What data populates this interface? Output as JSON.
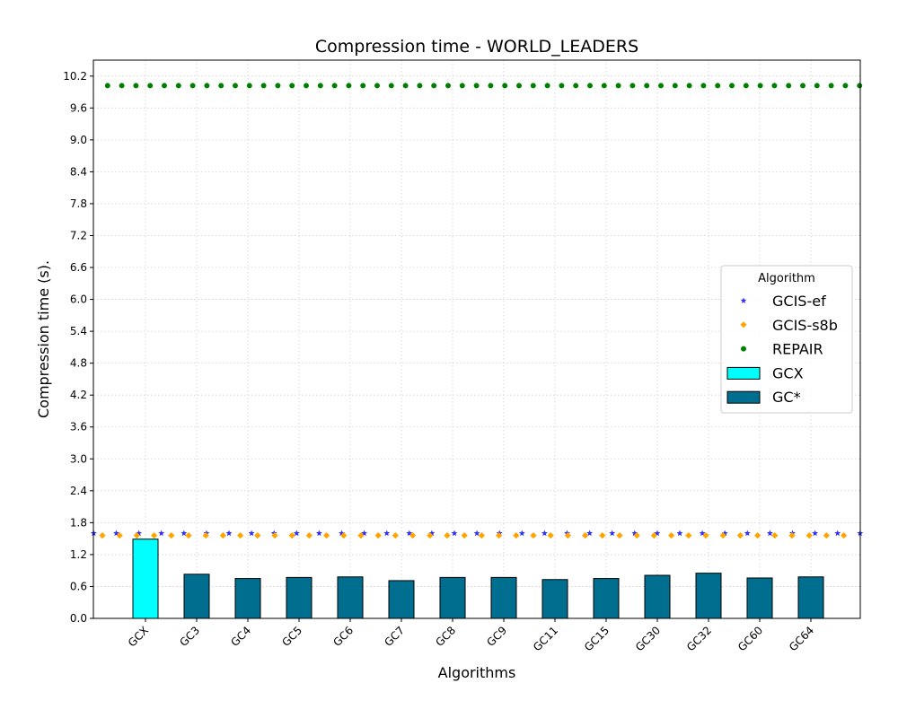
{
  "chart_data": {
    "type": "bar",
    "title": "Compression time -  WORLD_LEADERS",
    "xlabel": "Algorithms",
    "ylabel": "Compression time (s).",
    "categories": [
      "GCX",
      "GC3",
      "GC4",
      "GC5",
      "GC6",
      "GC7",
      "GC8",
      "GC9",
      "GC11",
      "GC15",
      "GC30",
      "GC32",
      "GC60",
      "GC64"
    ],
    "ylim": [
      0,
      10.5
    ],
    "yticks": [
      "0.0",
      "0.6",
      "1.2",
      "1.8",
      "2.4",
      "3.0",
      "3.6",
      "4.2",
      "4.8",
      "5.4",
      "6.0",
      "6.6",
      "7.2",
      "7.8",
      "8.4",
      "9.0",
      "9.6",
      "10.2"
    ],
    "grid": true,
    "legend": {
      "title": "Algorithm",
      "placement": "center-right",
      "entries": [
        {
          "label": "GCIS-ef",
          "marker": "star",
          "color": "#3333ff"
        },
        {
          "label": "GCIS-s8b",
          "marker": "diamond",
          "color": "#ffa500"
        },
        {
          "label": "REPAIR",
          "marker": "circle",
          "color": "#008000"
        },
        {
          "label": "GCX",
          "marker": "bar",
          "color": "#00ffff"
        },
        {
          "label": "GC*",
          "marker": "bar",
          "color": "#006e8f"
        }
      ]
    },
    "series": [
      {
        "name": "GCX",
        "kind": "bar",
        "color": "#00ffff",
        "values": [
          1.49,
          null,
          null,
          null,
          null,
          null,
          null,
          null,
          null,
          null,
          null,
          null,
          null,
          null
        ]
      },
      {
        "name": "GC*",
        "kind": "bar",
        "color": "#006e8f",
        "values": [
          null,
          0.83,
          0.75,
          0.77,
          0.78,
          0.71,
          0.77,
          0.77,
          0.73,
          0.75,
          0.81,
          0.85,
          0.76,
          0.78
        ]
      },
      {
        "name": "GCIS-ef",
        "kind": "reference-line",
        "marker": "star",
        "color": "#3333ff",
        "value": 1.6
      },
      {
        "name": "GCIS-s8b",
        "kind": "reference-line",
        "marker": "diamond",
        "color": "#ffa500",
        "value": 1.56
      },
      {
        "name": "REPAIR",
        "kind": "reference-line",
        "marker": "circle",
        "color": "#008000",
        "value": 10.02
      }
    ]
  }
}
